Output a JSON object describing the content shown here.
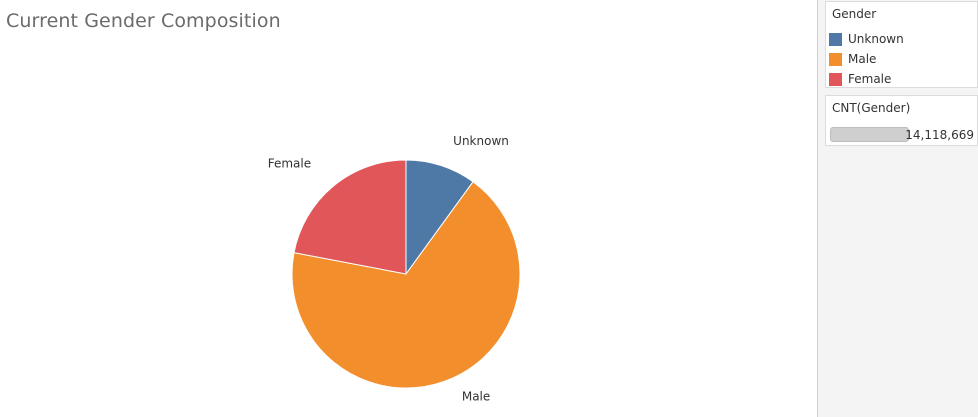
{
  "title": "Current Gender Composition",
  "legend": {
    "title": "Gender",
    "items": [
      {
        "label": "Unknown",
        "color": "#4e79a7"
      },
      {
        "label": "Male",
        "color": "#f28e2b"
      },
      {
        "label": "Female",
        "color": "#e15759"
      }
    ]
  },
  "size_legend": {
    "title": "CNT(Gender)",
    "value": "14,118,669"
  },
  "chart_data": {
    "type": "pie",
    "title": "Current Gender Composition",
    "measure": "CNT(Gender)",
    "total": 14118669,
    "slices": [
      {
        "label": "Unknown",
        "share": 0.1,
        "color": "#4e79a7"
      },
      {
        "label": "Male",
        "share": 0.68,
        "color": "#f28e2b"
      },
      {
        "label": "Female",
        "share": 0.22,
        "color": "#e15759"
      }
    ],
    "legend_position": "right"
  }
}
